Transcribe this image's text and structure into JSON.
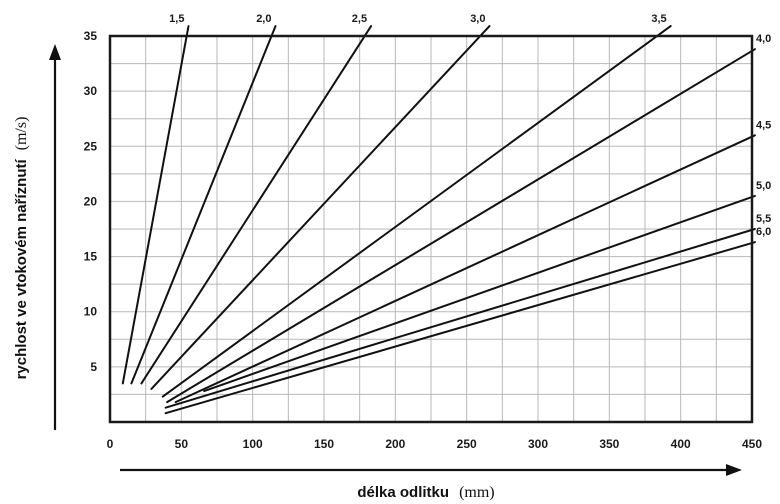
{
  "chart_data": {
    "type": "line",
    "xlabel": {
      "text": "délka odlitku",
      "unit": "(mm)"
    },
    "ylabel": {
      "text": "rychlost ve vtokovém naříznutí",
      "unit": "(m/s)"
    },
    "xlim": [
      0,
      450
    ],
    "ylim": [
      0,
      35
    ],
    "x_ticks": [
      "0",
      "50",
      "100",
      "150",
      "200",
      "250",
      "300",
      "350",
      "400",
      "450"
    ],
    "y_ticks": [
      "5",
      "10",
      "15",
      "20",
      "25",
      "30",
      "35"
    ],
    "grid": true,
    "series": [
      {
        "name": "1,5",
        "points": [
          [
            9,
            3.5
          ],
          [
            55,
            35.9
          ]
        ]
      },
      {
        "name": "2,0",
        "points": [
          [
            15,
            3.5
          ],
          [
            116,
            35.9
          ]
        ]
      },
      {
        "name": "2,5",
        "points": [
          [
            22,
            3.5
          ],
          [
            183,
            35.9
          ]
        ]
      },
      {
        "name": "3,0",
        "points": [
          [
            29,
            3.0
          ],
          [
            266,
            35.9
          ]
        ]
      },
      {
        "name": "3,5",
        "points": [
          [
            37,
            2.3
          ],
          [
            393,
            35.9
          ]
        ]
      },
      {
        "name": "4,0",
        "points": [
          [
            40,
            1.8
          ],
          [
            452,
            33.8
          ]
        ]
      },
      {
        "name": "4,5",
        "points": [
          [
            46,
            1.8
          ],
          [
            452,
            26.0
          ]
        ]
      },
      {
        "name": "5,0",
        "points": [
          [
            66,
            2.8
          ],
          [
            452,
            20.5
          ]
        ]
      },
      {
        "name": "5,5",
        "points": [
          [
            39,
            1.3
          ],
          [
            452,
            17.5
          ]
        ]
      },
      {
        "name": "6,0",
        "points": [
          [
            39,
            0.8
          ],
          [
            452,
            16.3
          ]
        ]
      }
    ]
  }
}
